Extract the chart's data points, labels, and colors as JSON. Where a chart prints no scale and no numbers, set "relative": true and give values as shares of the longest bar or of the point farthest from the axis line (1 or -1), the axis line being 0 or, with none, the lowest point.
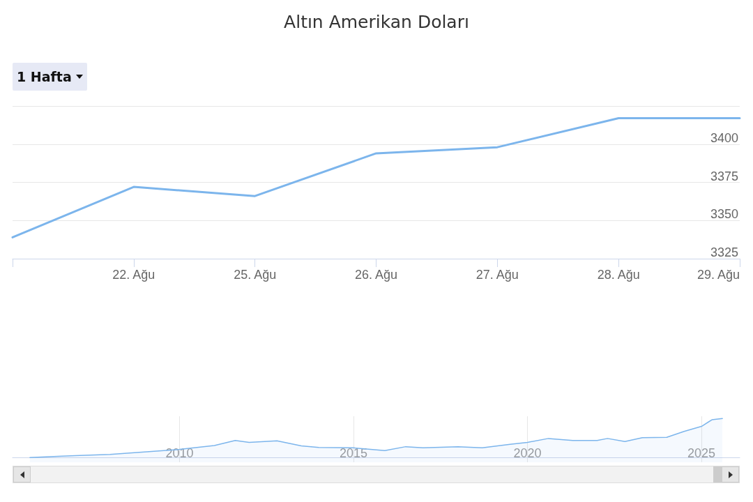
{
  "chart_data": [
    {
      "type": "line",
      "title": "Altın Amerikan Doları",
      "annotations": [
        "1 Hafta"
      ],
      "categories": [
        null,
        "22. Ağu",
        "25. Ağu",
        "26. Ağu",
        "27. Ağu",
        "28. Ağu",
        "29. Ağu"
      ],
      "series": [
        {
          "color": "#7cb5ec",
          "values": [
            3339,
            3372,
            3366,
            3394,
            3398,
            3417,
            3417
          ]
        }
      ],
      "ylim": [
        3325,
        3425
      ],
      "yticks": [
        3325,
        3350,
        3375,
        3400,
        {
          "value": 3425,
          "label": null
        }
      ],
      "grid": "y",
      "marker": "none",
      "line_style": "solid"
    },
    {
      "type": "area",
      "relative": true,
      "x": [
        2005.7,
        2006.5,
        2007,
        2008,
        2010,
        2011,
        2011.6,
        2012,
        2012.8,
        2013.5,
        2014,
        2015,
        2015.9,
        2016.5,
        2017,
        2018,
        2018.7,
        2019.5,
        2020,
        2020.6,
        2021.3,
        2022,
        2022.3,
        2022.8,
        2023.3,
        2024,
        2024.5,
        2025,
        2025.3,
        2025.6
      ],
      "series": [
        {
          "color": "#7cb5ec",
          "values": [
            0,
            0.03,
            0.05,
            0.08,
            0.21,
            0.31,
            0.44,
            0.39,
            0.43,
            0.3,
            0.26,
            0.25,
            0.18,
            0.28,
            0.25,
            0.28,
            0.25,
            0.34,
            0.39,
            0.49,
            0.44,
            0.44,
            0.49,
            0.41,
            0.51,
            0.52,
            0.67,
            0.8,
            0.97,
            1
          ]
        }
      ],
      "xlim": [
        2005.2,
        2026.1
      ],
      "xticks": [
        2010,
        2015,
        2020,
        2025
      ],
      "grid": "x",
      "marker": "none",
      "line_style": "solid"
    }
  ]
}
